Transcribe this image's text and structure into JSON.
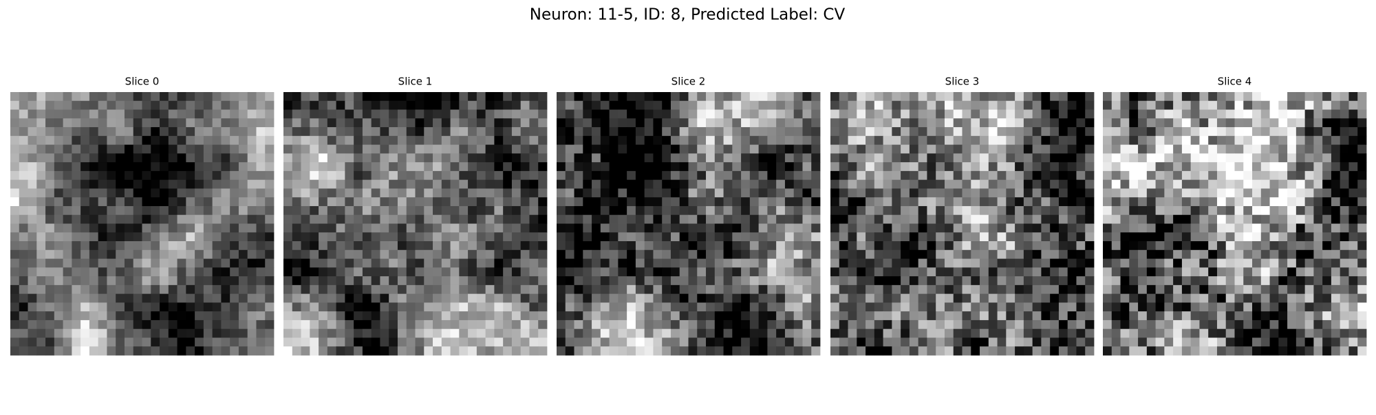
{
  "title": "Neuron: 11-5, ID: 8, Predicted Label: CV",
  "panels": [
    {
      "title": "Slice 0"
    },
    {
      "title": "Slice 1"
    },
    {
      "title": "Slice 2"
    },
    {
      "title": "Slice 3"
    },
    {
      "title": "Slice 4"
    }
  ]
}
